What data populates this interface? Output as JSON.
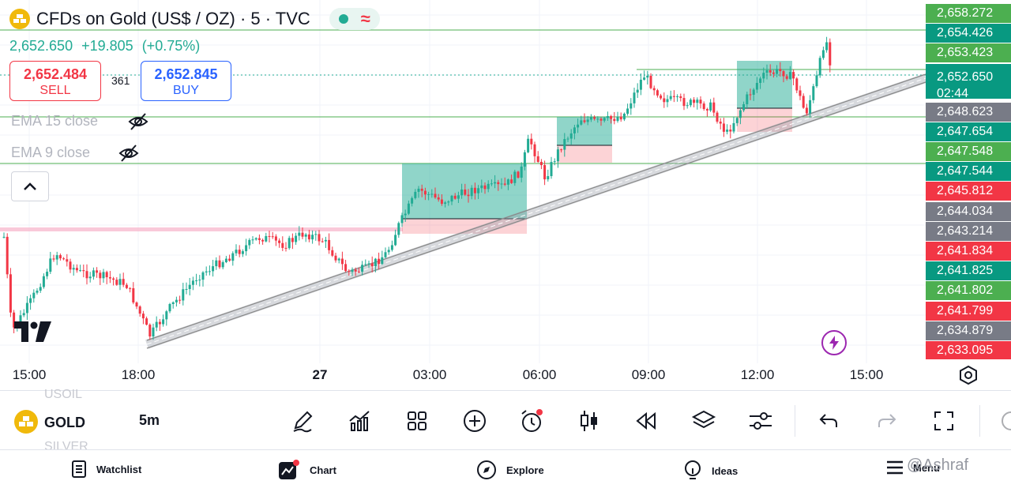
{
  "header": {
    "symbol_title": "CFDs on Gold (US$ / OZ) · 5 · TVC",
    "last_price": "2,652.650",
    "change": "+19.805",
    "change_pct": "(+0.75%)",
    "sell_price": "2,652.484",
    "sell_label": "SELL",
    "spread": "361",
    "buy_price": "2,652.845",
    "buy_label": "BUY"
  },
  "indicators": [
    {
      "label": "EMA 15 close",
      "visibility": "hidden"
    },
    {
      "label": "EMA 9 close",
      "visibility": "hidden"
    }
  ],
  "price_scale": [
    {
      "label": "2,658.272",
      "color": "#4caf50"
    },
    {
      "label": "2,654.426",
      "color": "#089981"
    },
    {
      "label": "2,653.423",
      "color": "#4caf50"
    },
    {
      "label": "2,652.650",
      "sub": "02:44",
      "color": "#089981"
    },
    {
      "label": "2,648.623",
      "color": "#787b86"
    },
    {
      "label": "2,647.654",
      "color": "#089981"
    },
    {
      "label": "2,647.548",
      "color": "#4caf50"
    },
    {
      "label": "2,647.544",
      "color": "#089981"
    },
    {
      "label": "2,645.812",
      "color": "#f23645"
    },
    {
      "label": "2,644.034",
      "color": "#787b86"
    },
    {
      "label": "2,643.214",
      "color": "#787b86"
    },
    {
      "label": "2,641.834",
      "color": "#f23645"
    },
    {
      "label": "2,641.825",
      "color": "#089981"
    },
    {
      "label": "2,641.802",
      "color": "#4caf50"
    },
    {
      "label": "2,641.799",
      "color": "#f23645"
    },
    {
      "label": "2,634.879",
      "color": "#787b86"
    },
    {
      "label": "2,633.095",
      "color": "#f23645"
    }
  ],
  "time_axis": {
    "ticks": [
      "15:00",
      "18:00",
      "27",
      "03:00",
      "06:00",
      "09:00",
      "12:00",
      "15:00"
    ]
  },
  "colors": {
    "up": "#22ab94",
    "down": "#f23645",
    "accent": "#2962ff"
  },
  "toolbar": {
    "symbol_above": "USOIL",
    "symbol": "GOLD",
    "symbol_below": "SILVER",
    "interval": "5m",
    "tools": [
      "pencil-icon",
      "indicators-icon",
      "layouts-icon",
      "add-icon",
      "alert-icon",
      "candle-type-icon",
      "replay-icon",
      "layers-icon",
      "settings-sliders-icon",
      "undo-icon",
      "redo-icon",
      "fullscreen-icon"
    ]
  },
  "bottom_nav": [
    {
      "label": "Watchlist",
      "icon": "watchlist-icon"
    },
    {
      "label": "Chart",
      "icon": "chart-icon"
    },
    {
      "label": "Explore",
      "icon": "compass-icon"
    },
    {
      "label": "Ideas",
      "icon": "lightbulb-icon"
    },
    {
      "label": "Menu",
      "icon": "menu-icon"
    }
  ],
  "watermark": "@Ashraf"
}
